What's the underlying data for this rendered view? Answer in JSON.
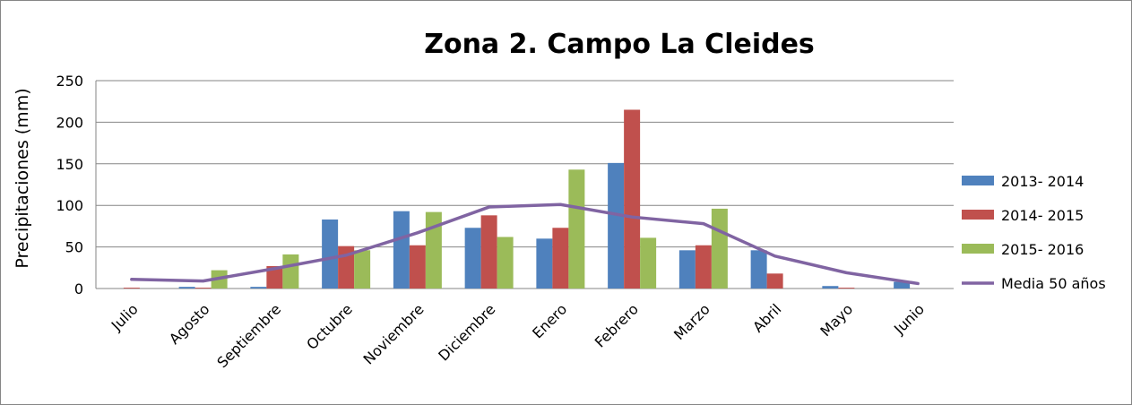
{
  "chart_data": {
    "type": "bar",
    "title": "Zona 2. Campo La Cleides",
    "xlabel": "",
    "ylabel": "Precipitaciones (mm)",
    "ylim": [
      0,
      250
    ],
    "yticks": [
      "0",
      "50",
      "100",
      "150",
      "200",
      "250"
    ],
    "grid": true,
    "legend_position": "right",
    "categories": [
      "Julio",
      "Agosto",
      "Septiembre",
      "Octubre",
      "Noviembre",
      "Diciembre",
      "Enero",
      "Febrero",
      "Marzo",
      "Abril",
      "Mayo",
      "Junio"
    ],
    "series": [
      {
        "name": "2013- 2014",
        "type": "bar",
        "color": "#4F81BD",
        "values": [
          0,
          2,
          2,
          83,
          93,
          73,
          60,
          151,
          46,
          46,
          3,
          8
        ]
      },
      {
        "name": "2014- 2015",
        "type": "bar",
        "color": "#C0504D",
        "values": [
          1,
          1,
          27,
          51,
          52,
          88,
          73,
          215,
          52,
          18,
          1,
          0
        ]
      },
      {
        "name": "2015- 2016",
        "type": "bar",
        "color": "#9BBB59",
        "values": [
          0,
          22,
          41,
          46,
          92,
          62,
          143,
          61,
          96,
          0,
          0,
          0
        ]
      },
      {
        "name": "Media 50 años",
        "type": "line",
        "color": "#8064A2",
        "values": [
          11,
          9,
          24,
          40,
          67,
          98,
          101,
          86,
          78,
          39,
          19,
          6
        ]
      }
    ]
  }
}
